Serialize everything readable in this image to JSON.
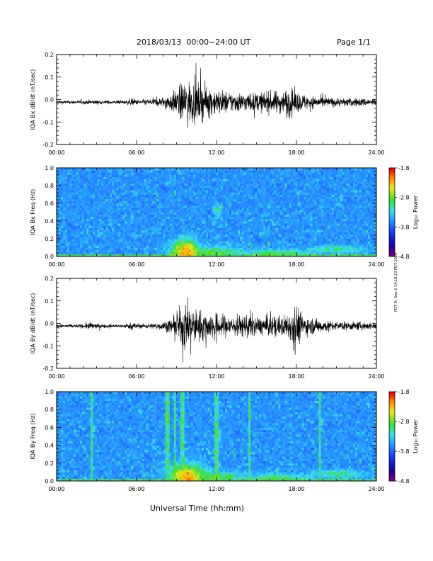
{
  "header": {
    "title": "2018/03/13  00:00−24:00 UT",
    "page": "Page 1/1"
  },
  "footer": {
    "xlabel": "Universal Time (hh:mm)",
    "stamp": "PDT Fri Sep 6 14:18:23 PDT 2019"
  },
  "chart_data": [
    {
      "type": "line",
      "ylabel": "IQA Bx dB/dt (nT/sec)",
      "xlim": [
        0,
        24
      ],
      "ylim": [
        -0.2,
        0.2
      ],
      "xticks": [
        "00:00",
        "06:00",
        "12:00",
        "18:00",
        "24:00"
      ],
      "yticks": [
        "-0.2",
        "-0.1",
        "0.0",
        "0.1",
        "0.2"
      ],
      "series": [
        {
          "color": "#000000",
          "x": [
            0,
            1,
            2,
            2.5,
            3,
            4,
            5,
            5.9,
            6,
            7,
            8,
            8.5,
            9,
            9.5,
            10,
            10.5,
            11,
            11.5,
            12,
            12.5,
            13,
            14,
            15,
            16,
            17,
            17.5,
            18,
            19,
            20,
            21,
            22,
            23,
            24
          ],
          "envelope": [
            0.008,
            0.008,
            0.009,
            0.012,
            0.01,
            0.008,
            0.008,
            0.02,
            0.012,
            0.015,
            0.025,
            0.04,
            0.06,
            0.1,
            0.1,
            0.09,
            0.08,
            0.07,
            0.06,
            0.055,
            0.05,
            0.045,
            0.045,
            0.05,
            0.055,
            0.07,
            0.05,
            0.03,
            0.025,
            0.02,
            0.02,
            0.02,
            0.015
          ]
        }
      ]
    },
    {
      "type": "heatmap",
      "ylabel": "IQA Bx Freq (Hz)",
      "xlim": [
        0,
        24
      ],
      "ylim": [
        0,
        1.0
      ],
      "xticks": [
        "00:00",
        "06:00",
        "12:00",
        "18:00",
        "24:00"
      ],
      "yticks": [
        "0.0",
        "0.2",
        "0.4",
        "0.6",
        "0.8",
        "1.0"
      ],
      "colorbar": {
        "label": "Log₁₀ Power",
        "ticks": [
          "-1.8",
          "-2.8",
          "-3.8",
          "-4.8"
        ],
        "range": [
          -4.8,
          -1.8
        ]
      },
      "features": [
        {
          "t": 9.7,
          "f": 0.05,
          "dt": 1.2,
          "df": 0.15,
          "level": -2.2
        },
        {
          "t": 11.5,
          "f": 0.04,
          "dt": 3.0,
          "df": 0.08,
          "level": -2.8
        },
        {
          "t": 12.1,
          "f": 0.52,
          "dt": 0.35,
          "df": 0.08,
          "level": -3.1
        },
        {
          "t": 16.5,
          "f": 0.03,
          "dt": 3.0,
          "df": 0.06,
          "level": -2.9
        },
        {
          "t": 21.0,
          "f": 0.08,
          "dt": 2.5,
          "df": 0.05,
          "level": -3.0
        }
      ]
    },
    {
      "type": "line",
      "ylabel": "IQA By dB/dt (nT/sec)",
      "xlim": [
        0,
        24
      ],
      "ylim": [
        -0.2,
        0.2
      ],
      "xticks": [
        "00:00",
        "06:00",
        "12:00",
        "18:00",
        "24:00"
      ],
      "yticks": [
        "-0.2",
        "-0.1",
        "0.0",
        "0.1",
        "0.2"
      ],
      "series": [
        {
          "color": "#000000",
          "x": [
            0,
            1,
            2,
            2.5,
            3,
            4,
            5,
            5.9,
            6,
            7,
            8,
            8.5,
            9,
            9.5,
            10,
            10.5,
            11,
            11.5,
            12,
            13,
            14,
            14.5,
            15,
            16,
            17,
            17.5,
            17.9,
            18.5,
            19,
            20,
            21,
            22,
            23,
            24
          ],
          "envelope": [
            0.008,
            0.008,
            0.01,
            0.02,
            0.01,
            0.008,
            0.008,
            0.02,
            0.01,
            0.012,
            0.02,
            0.03,
            0.05,
            0.12,
            0.09,
            0.08,
            0.07,
            0.06,
            0.06,
            0.05,
            0.05,
            0.06,
            0.04,
            0.05,
            0.05,
            0.07,
            0.12,
            0.05,
            0.04,
            0.03,
            0.02,
            0.02,
            0.02,
            0.015
          ]
        }
      ]
    },
    {
      "type": "heatmap",
      "ylabel": "IQA By Freq (Hz)",
      "xlim": [
        0,
        24
      ],
      "ylim": [
        0,
        1.0
      ],
      "xticks": [
        "00:00",
        "06:00",
        "12:00",
        "18:00",
        "24:00"
      ],
      "yticks": [
        "0.0",
        "0.2",
        "0.4",
        "0.6",
        "0.8",
        "1.0"
      ],
      "colorbar": {
        "label": "Log₁₀ Power",
        "ticks": [
          "-1.8",
          "-2.8",
          "-3.8",
          "-4.8"
        ],
        "range": [
          -4.8,
          -1.8
        ]
      },
      "streaks": [
        2.6,
        8.3,
        8.9,
        9.4,
        12.0,
        14.5,
        19.8
      ],
      "features": [
        {
          "t": 9.8,
          "f": 0.05,
          "dt": 1.5,
          "df": 0.15,
          "level": -2.2
        },
        {
          "t": 11.5,
          "f": 0.04,
          "dt": 3.0,
          "df": 0.08,
          "level": -2.8
        },
        {
          "t": 12.1,
          "f": 0.5,
          "dt": 0.35,
          "df": 0.08,
          "level": -3.1
        },
        {
          "t": 16.5,
          "f": 0.03,
          "dt": 3.0,
          "df": 0.06,
          "level": -2.9
        },
        {
          "t": 21.0,
          "f": 0.08,
          "dt": 2.5,
          "df": 0.05,
          "level": -3.0
        }
      ]
    }
  ]
}
